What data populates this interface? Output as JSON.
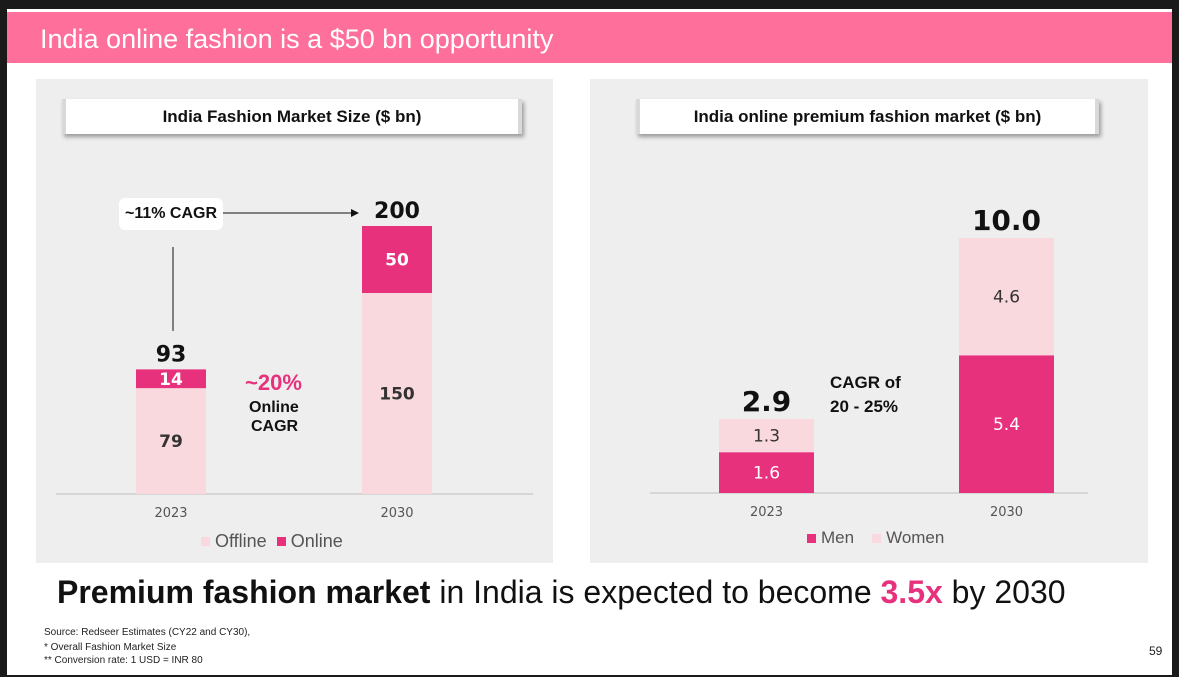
{
  "header": {
    "title": "India online fashion is a $50 bn opportunity"
  },
  "colors": {
    "header_bg": "#ff6f9c",
    "accent": "#e8317d",
    "light": "#f9d9de",
    "panel_bg": "#eeeeee"
  },
  "left_chart": {
    "cagr_label": "~11% CAGR",
    "online_cagr": {
      "value": "~20%",
      "line1": "Online",
      "line2": "CAGR"
    },
    "legend": [
      "Offline",
      "Online"
    ]
  },
  "right_chart": {
    "cagr_line1": "CAGR of",
    "cagr_line2": "20 - 25%",
    "legend": [
      "Men",
      "Women"
    ]
  },
  "footer": {
    "bold": "Premium fashion market",
    "middle": " in India is expected to become ",
    "highlight": "3.5x",
    "end": " by 2030"
  },
  "notes": [
    "Source: Redseer Estimates (CY22 and CY30),",
    "* Overall Fashion Market Size",
    "** Conversion rate: 1 USD = INR 80"
  ],
  "page_number": "59",
  "chart_data": [
    {
      "type": "bar",
      "stacked": true,
      "title": "India Fashion Market Size ($ bn)",
      "categories": [
        "2023",
        "2030"
      ],
      "series": [
        {
          "name": "Offline",
          "values": [
            79,
            150
          ],
          "color": "#f9d9de"
        },
        {
          "name": "Online",
          "values": [
            14,
            50
          ],
          "color": "#e8317d"
        }
      ],
      "totals": [
        "93",
        "200"
      ],
      "ylim": [
        0,
        200
      ],
      "grid": false,
      "legend_position": "bottom"
    },
    {
      "type": "bar",
      "stacked": true,
      "title": "India online premium fashion market ($ bn)",
      "categories": [
        "2023",
        "2030"
      ],
      "series": [
        {
          "name": "Men",
          "values": [
            1.6,
            5.4
          ],
          "color": "#e8317d"
        },
        {
          "name": "Women",
          "values": [
            1.3,
            4.6
          ],
          "color": "#f9d9de"
        }
      ],
      "totals": [
        "2.9",
        "10.0"
      ],
      "ylim": [
        0,
        10
      ],
      "grid": false,
      "legend_position": "bottom"
    }
  ]
}
